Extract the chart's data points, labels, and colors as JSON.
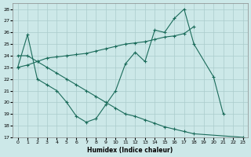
{
  "xlabel": "Humidex (Indice chaleur)",
  "background_color": "#cce8e8",
  "grid_color": "#aacccc",
  "line_color": "#1a6b5a",
  "xlim": [
    -0.5,
    23.5
  ],
  "ylim": [
    17,
    28.5
  ],
  "xticks": [
    0,
    1,
    2,
    3,
    4,
    5,
    6,
    7,
    8,
    9,
    10,
    11,
    12,
    13,
    14,
    15,
    16,
    17,
    18,
    19,
    20,
    21,
    22,
    23
  ],
  "yticks": [
    17,
    18,
    19,
    20,
    21,
    22,
    23,
    24,
    25,
    26,
    27,
    28
  ],
  "series": [
    {
      "x": [
        0,
        1,
        2,
        3,
        4,
        5,
        6,
        7,
        8,
        9,
        10,
        11,
        12,
        13,
        14,
        15,
        16,
        17,
        18,
        20,
        21
      ],
      "y": [
        23.0,
        25.8,
        22.0,
        21.5,
        21.0,
        20.0,
        18.8,
        18.3,
        18.6,
        19.8,
        21.0,
        23.3,
        24.3,
        23.5,
        26.2,
        26.0,
        27.2,
        28.0,
        25.0,
        22.2,
        19.0
      ]
    },
    {
      "x": [
        0,
        1,
        2,
        3,
        4,
        5,
        6,
        7,
        8,
        9,
        10,
        11,
        12,
        13,
        14,
        15,
        16,
        17,
        18
      ],
      "y": [
        23.0,
        23.2,
        23.5,
        23.8,
        23.9,
        24.0,
        24.1,
        24.2,
        24.4,
        24.6,
        24.8,
        25.0,
        25.1,
        25.2,
        25.4,
        25.6,
        25.7,
        25.9,
        26.5
      ]
    },
    {
      "x": [
        0,
        1,
        2,
        3,
        4,
        5,
        6,
        7,
        8,
        9,
        10,
        11,
        12,
        13,
        14,
        15,
        16,
        17,
        18,
        23
      ],
      "y": [
        24.0,
        24.0,
        23.5,
        23.0,
        22.5,
        22.0,
        21.5,
        21.0,
        20.5,
        20.0,
        19.5,
        19.0,
        18.8,
        18.5,
        18.2,
        17.9,
        17.7,
        17.5,
        17.3,
        17.0
      ]
    }
  ]
}
